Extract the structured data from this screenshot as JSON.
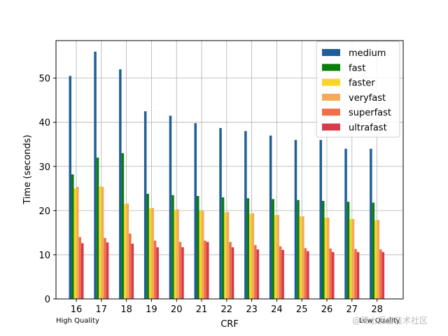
{
  "chart_data": {
    "type": "bar",
    "title": "",
    "xlabel": "CRF",
    "ylabel": "Time (seconds)",
    "ylim": [
      0,
      58.5
    ],
    "yticks": [
      0,
      10,
      20,
      30,
      40,
      50
    ],
    "grid": true,
    "legend_position": "top-right",
    "categories": [
      "16",
      "17",
      "18",
      "19",
      "20",
      "21",
      "22",
      "23",
      "24",
      "25",
      "26",
      "27",
      "28"
    ],
    "series": [
      {
        "name": "medium",
        "color": "#1f5f96",
        "values": [
          50.5,
          56.0,
          52.0,
          42.5,
          41.5,
          39.8,
          38.7,
          38.0,
          37.0,
          36.0,
          36.0,
          34.0,
          34.0
        ]
      },
      {
        "name": "fast",
        "color": "#0b7d0b",
        "values": [
          28.2,
          32.0,
          33.0,
          23.8,
          23.5,
          23.3,
          23.0,
          22.8,
          22.6,
          22.4,
          22.2,
          22.0,
          21.8
        ]
      },
      {
        "name": "faster",
        "color": "#f7d52b",
        "values": [
          25.0,
          25.5,
          21.5,
          20.5,
          20.2,
          20.0,
          19.6,
          19.3,
          19.0,
          18.7,
          18.4,
          18.1,
          17.8
        ]
      },
      {
        "name": "veryfast",
        "color": "#f5aa5a",
        "values": [
          25.4,
          25.4,
          21.6,
          20.6,
          20.3,
          20.0,
          19.7,
          19.4,
          19.0,
          18.7,
          18.4,
          18.1,
          17.9
        ]
      },
      {
        "name": "superfast",
        "color": "#ee6f4a",
        "values": [
          14.0,
          13.8,
          14.8,
          13.2,
          12.9,
          13.2,
          12.9,
          12.2,
          11.9,
          11.5,
          11.4,
          11.3,
          11.2
        ]
      },
      {
        "name": "ultrafast",
        "color": "#d63b4c",
        "values": [
          12.6,
          12.8,
          12.5,
          11.7,
          11.7,
          12.9,
          11.7,
          11.2,
          11.1,
          10.8,
          10.6,
          10.6,
          10.6
        ]
      }
    ],
    "annotations": {
      "left": "High Quality",
      "right": "Low Quality"
    }
  },
  "watermark": "@稀土掘金技术社区"
}
